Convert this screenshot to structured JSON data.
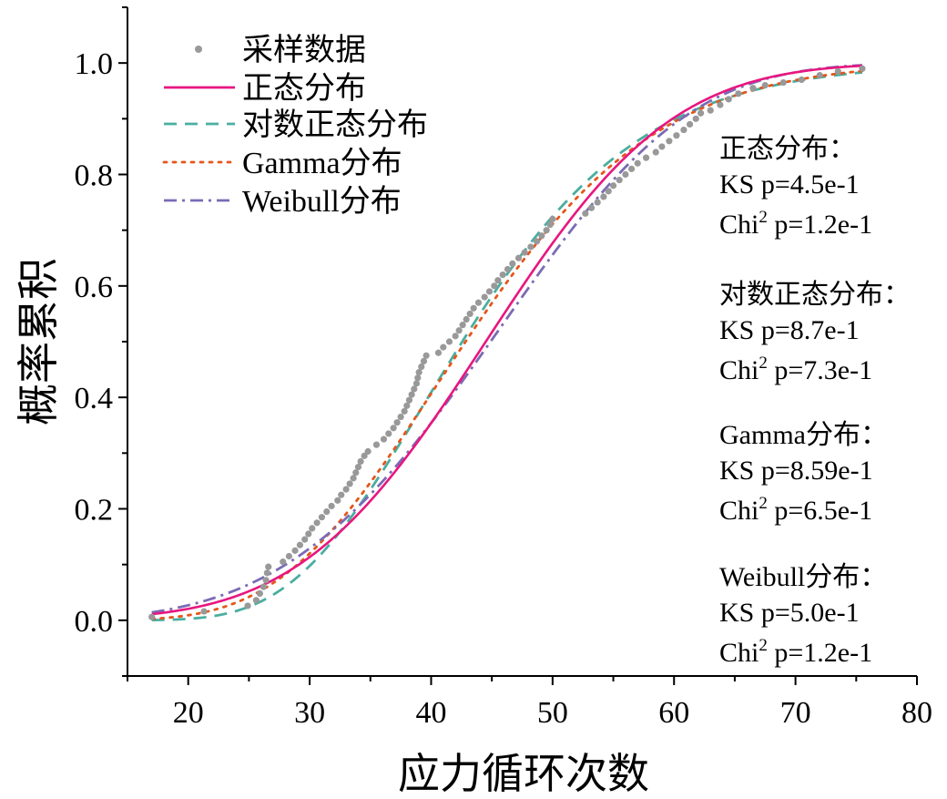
{
  "chart_data": {
    "type": "line",
    "xlabel": "应力循环次数",
    "ylabel": "概率累积",
    "xlim": [
      15,
      80
    ],
    "ylim": [
      -0.1,
      1.1
    ],
    "xticks": [
      20,
      30,
      40,
      50,
      60,
      70,
      80
    ],
    "xtick_labels": [
      "20",
      "30",
      "40",
      "50",
      "60",
      "70",
      "80"
    ],
    "yticks": [
      0.0,
      0.2,
      0.4,
      0.6,
      0.8,
      1.0
    ],
    "ytick_labels": [
      "0.0",
      "0.2",
      "0.4",
      "0.6",
      "0.8",
      "1.0"
    ],
    "grid": false,
    "legend_position": "top-left",
    "legend": [
      {
        "label": "采样数据",
        "style": "dot",
        "color": "#999999"
      },
      {
        "label": "正态分布",
        "style": "solid",
        "color": "#e8167f"
      },
      {
        "label": "对数正态分布",
        "style": "dashed",
        "color": "#4aaea0"
      },
      {
        "label": "Gamma分布",
        "style": "dotted",
        "color": "#e4561a"
      },
      {
        "label": "Weibull分布",
        "style": "dashdot",
        "color": "#7b6bb5"
      }
    ],
    "sample_points": [
      [
        17.0,
        0.006
      ],
      [
        21.3,
        0.016
      ],
      [
        24.9,
        0.026
      ],
      [
        25.6,
        0.036
      ],
      [
        25.9,
        0.048
      ],
      [
        26.2,
        0.06
      ],
      [
        26.4,
        0.072
      ],
      [
        26.5,
        0.085
      ],
      [
        26.6,
        0.096
      ],
      [
        27.8,
        0.105
      ],
      [
        28.3,
        0.115
      ],
      [
        28.8,
        0.125
      ],
      [
        29.2,
        0.135
      ],
      [
        29.6,
        0.145
      ],
      [
        29.9,
        0.155
      ],
      [
        30.2,
        0.165
      ],
      [
        30.6,
        0.175
      ],
      [
        31.0,
        0.185
      ],
      [
        31.4,
        0.195
      ],
      [
        31.8,
        0.205
      ],
      [
        32.3,
        0.215
      ],
      [
        32.6,
        0.225
      ],
      [
        33.0,
        0.235
      ],
      [
        33.3,
        0.245
      ],
      [
        33.6,
        0.255
      ],
      [
        33.8,
        0.265
      ],
      [
        34.0,
        0.275
      ],
      [
        34.2,
        0.285
      ],
      [
        34.5,
        0.295
      ],
      [
        34.8,
        0.303
      ],
      [
        35.5,
        0.315
      ],
      [
        36.1,
        0.325
      ],
      [
        36.5,
        0.335
      ],
      [
        36.9,
        0.345
      ],
      [
        37.2,
        0.355
      ],
      [
        37.5,
        0.365
      ],
      [
        37.8,
        0.375
      ],
      [
        38.0,
        0.385
      ],
      [
        38.2,
        0.395
      ],
      [
        38.4,
        0.405
      ],
      [
        38.6,
        0.415
      ],
      [
        38.8,
        0.425
      ],
      [
        38.9,
        0.435
      ],
      [
        39.0,
        0.445
      ],
      [
        39.2,
        0.455
      ],
      [
        39.4,
        0.465
      ],
      [
        39.6,
        0.475
      ],
      [
        40.6,
        0.48
      ],
      [
        41.0,
        0.49
      ],
      [
        41.5,
        0.5
      ],
      [
        42.0,
        0.51
      ],
      [
        42.3,
        0.52
      ],
      [
        42.6,
        0.53
      ],
      [
        42.9,
        0.54
      ],
      [
        43.2,
        0.55
      ],
      [
        43.5,
        0.56
      ],
      [
        43.9,
        0.57
      ],
      [
        44.4,
        0.58
      ],
      [
        44.8,
        0.59
      ],
      [
        45.2,
        0.6
      ],
      [
        45.5,
        0.61
      ],
      [
        45.9,
        0.62
      ],
      [
        46.3,
        0.63
      ],
      [
        46.7,
        0.64
      ],
      [
        47.2,
        0.65
      ],
      [
        47.7,
        0.66
      ],
      [
        48.2,
        0.67
      ],
      [
        48.7,
        0.68
      ],
      [
        49.1,
        0.69
      ],
      [
        49.5,
        0.7
      ],
      [
        49.8,
        0.71
      ],
      [
        50.0,
        0.72
      ],
      [
        52.7,
        0.73
      ],
      [
        53.2,
        0.74
      ],
      [
        53.7,
        0.75
      ],
      [
        54.2,
        0.76
      ],
      [
        54.6,
        0.77
      ],
      [
        55.0,
        0.78
      ],
      [
        55.5,
        0.79
      ],
      [
        56.0,
        0.8
      ],
      [
        56.5,
        0.81
      ],
      [
        57.0,
        0.82
      ],
      [
        57.7,
        0.83
      ],
      [
        58.5,
        0.84
      ],
      [
        59.0,
        0.85
      ],
      [
        59.6,
        0.86
      ],
      [
        60.2,
        0.87
      ],
      [
        60.8,
        0.88
      ],
      [
        61.3,
        0.89
      ],
      [
        61.8,
        0.9
      ],
      [
        62.2,
        0.91
      ],
      [
        63.0,
        0.915
      ],
      [
        63.8,
        0.925
      ],
      [
        64.5,
        0.935
      ],
      [
        65.3,
        0.945
      ],
      [
        66.5,
        0.955
      ],
      [
        67.5,
        0.96
      ],
      [
        69.0,
        0.965
      ],
      [
        70.5,
        0.97
      ],
      [
        72.0,
        0.978
      ],
      [
        73.5,
        0.985
      ],
      [
        75.5,
        0.99
      ]
    ],
    "curves": [
      {
        "name": "正态分布",
        "type": "normal",
        "mu": 44.5,
        "sigma": 12.0,
        "x_range": [
          17,
          75.5
        ]
      },
      {
        "name": "对数正态分布",
        "type": "lognormal",
        "mu_log": 3.751,
        "sigma_log": 0.27,
        "x_range": [
          17,
          75.5
        ]
      },
      {
        "name": "Gamma分布",
        "type": "gamma",
        "shape": 12.5,
        "scale": 3.52,
        "x_range": [
          17,
          75.5
        ]
      },
      {
        "name": "Weibull分布",
        "type": "weibull",
        "shape": 4.0,
        "scale": 49.2,
        "x_range": [
          17,
          75.5
        ]
      }
    ],
    "annotations": [
      {
        "title": "正态分布：",
        "ks": "KS p=4.5e-1",
        "chi_prefix": "Chi",
        "chi_sup": "2",
        "chi_value": " p=1.2e-1"
      },
      {
        "title": "对数正态分布：",
        "ks": "KS p=8.7e-1",
        "chi_prefix": "Chi",
        "chi_sup": "2",
        "chi_value": " p=7.3e-1"
      },
      {
        "title": "Gamma分布：",
        "ks": "KS p=8.59e-1",
        "chi_prefix": "Chi",
        "chi_sup": "2",
        "chi_value": " p=6.5e-1"
      },
      {
        "title": "Weibull分布：",
        "ks": "KS p=5.0e-1",
        "chi_prefix": "Chi",
        "chi_sup": "2",
        "chi_value": " p=1.2e-1"
      }
    ]
  }
}
